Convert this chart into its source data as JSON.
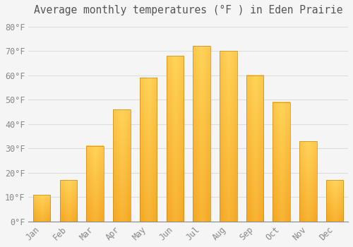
{
  "title": "Average monthly temperatures (°F ) in Eden Prairie",
  "months": [
    "Jan",
    "Feb",
    "Mar",
    "Apr",
    "May",
    "Jun",
    "Jul",
    "Aug",
    "Sep",
    "Oct",
    "Nov",
    "Dec"
  ],
  "values": [
    11,
    17,
    31,
    46,
    59,
    68,
    72,
    70,
    60,
    49,
    33,
    17
  ],
  "bar_color_dark": "#F5A623",
  "bar_color_light": "#FFD45A",
  "bar_border_color": "#C8891A",
  "ylim": [
    0,
    83
  ],
  "yticks": [
    0,
    10,
    20,
    30,
    40,
    50,
    60,
    70,
    80
  ],
  "ytick_labels": [
    "0°F",
    "10°F",
    "20°F",
    "30°F",
    "40°F",
    "50°F",
    "60°F",
    "70°F",
    "80°F"
  ],
  "background_color": "#f5f5f5",
  "grid_color": "#dddddd",
  "title_fontsize": 10.5,
  "tick_fontsize": 8.5,
  "xlabel_rotation": 45
}
